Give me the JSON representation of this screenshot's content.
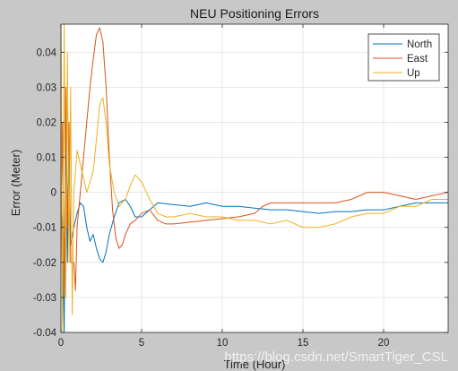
{
  "chart_data": {
    "type": "line",
    "title": "NEU Positioning Errors",
    "xlabel": "Time (Hour)",
    "ylabel": "Error (Meter)",
    "xlim": [
      0,
      24
    ],
    "ylim": [
      -0.04,
      0.048
    ],
    "xticks": [
      0,
      5,
      10,
      15,
      20
    ],
    "yticks": [
      -0.04,
      -0.03,
      -0.02,
      -0.01,
      0,
      0.01,
      0.02,
      0.03,
      0.04
    ],
    "ytick_labels": [
      "-0.04",
      "-0.03",
      "-0.02",
      "-0.01",
      "0",
      "0.01",
      "0.02",
      "0.03",
      "0.04"
    ],
    "grid": true,
    "legend_position": "top-right",
    "series": [
      {
        "name": "North",
        "color": "#0072bd",
        "points": [
          [
            0,
            0
          ],
          [
            0.1,
            -0.01
          ],
          [
            0.2,
            -0.04
          ],
          [
            0.3,
            0.02
          ],
          [
            0.4,
            -0.02
          ],
          [
            0.5,
            0.01
          ],
          [
            0.6,
            -0.015
          ],
          [
            0.8,
            -0.01
          ],
          [
            1.0,
            -0.006
          ],
          [
            1.2,
            -0.003
          ],
          [
            1.4,
            -0.004
          ],
          [
            1.6,
            -0.01
          ],
          [
            1.8,
            -0.014
          ],
          [
            2.0,
            -0.012
          ],
          [
            2.2,
            -0.016
          ],
          [
            2.4,
            -0.019
          ],
          [
            2.6,
            -0.02
          ],
          [
            2.8,
            -0.017
          ],
          [
            3.0,
            -0.012
          ],
          [
            3.3,
            -0.007
          ],
          [
            3.6,
            -0.003
          ],
          [
            4.0,
            -0.002
          ],
          [
            4.3,
            -0.004
          ],
          [
            4.6,
            -0.007
          ],
          [
            5.0,
            -0.007
          ],
          [
            5.5,
            -0.005
          ],
          [
            6.0,
            -0.003
          ],
          [
            7,
            -0.0035
          ],
          [
            8,
            -0.004
          ],
          [
            9,
            -0.003
          ],
          [
            10,
            -0.004
          ],
          [
            11,
            -0.004
          ],
          [
            12,
            -0.0045
          ],
          [
            13,
            -0.005
          ],
          [
            14,
            -0.005
          ],
          [
            15,
            -0.0055
          ],
          [
            16,
            -0.006
          ],
          [
            17,
            -0.0055
          ],
          [
            18,
            -0.0055
          ],
          [
            19,
            -0.005
          ],
          [
            20,
            -0.005
          ],
          [
            21,
            -0.004
          ],
          [
            22,
            -0.003
          ],
          [
            23,
            -0.003
          ],
          [
            24,
            -0.003
          ]
        ]
      },
      {
        "name": "East",
        "color": "#d95319",
        "points": [
          [
            0,
            -0.02
          ],
          [
            0.1,
            0.02
          ],
          [
            0.2,
            -0.03
          ],
          [
            0.3,
            0.03
          ],
          [
            0.4,
            -0.01
          ],
          [
            0.5,
            0.02
          ],
          [
            0.6,
            -0.02
          ],
          [
            0.8,
            -0.02
          ],
          [
            0.9,
            -0.028
          ],
          [
            1.0,
            -0.01
          ],
          [
            1.2,
            0.0
          ],
          [
            1.4,
            0.01
          ],
          [
            1.6,
            0.02
          ],
          [
            1.8,
            0.03
          ],
          [
            2.0,
            0.038
          ],
          [
            2.2,
            0.045
          ],
          [
            2.4,
            0.047
          ],
          [
            2.6,
            0.043
          ],
          [
            2.8,
            0.03
          ],
          [
            3.0,
            0.01
          ],
          [
            3.2,
            -0.005
          ],
          [
            3.4,
            -0.013
          ],
          [
            3.6,
            -0.016
          ],
          [
            3.8,
            -0.015
          ],
          [
            4.0,
            -0.012
          ],
          [
            4.3,
            -0.009
          ],
          [
            4.6,
            -0.008
          ],
          [
            5.0,
            -0.006
          ],
          [
            5.5,
            -0.005
          ],
          [
            6.0,
            -0.008
          ],
          [
            6.5,
            -0.009
          ],
          [
            7,
            -0.009
          ],
          [
            8,
            -0.0085
          ],
          [
            9,
            -0.008
          ],
          [
            10,
            -0.0075
          ],
          [
            11,
            -0.007
          ],
          [
            12,
            -0.006
          ],
          [
            12.5,
            -0.004
          ],
          [
            13,
            -0.003
          ],
          [
            14,
            -0.003
          ],
          [
            15,
            -0.003
          ],
          [
            16,
            -0.003
          ],
          [
            17,
            -0.003
          ],
          [
            18,
            -0.002
          ],
          [
            19,
            0.0
          ],
          [
            20,
            0.0
          ],
          [
            21,
            -0.001
          ],
          [
            22,
            -0.002
          ],
          [
            23,
            -0.001
          ],
          [
            24,
            0.0
          ]
        ]
      },
      {
        "name": "Up",
        "color": "#edb120",
        "points": [
          [
            0,
            0.048
          ],
          [
            0.1,
            -0.04
          ],
          [
            0.2,
            0.048
          ],
          [
            0.3,
            -0.03
          ],
          [
            0.4,
            0.04
          ],
          [
            0.5,
            -0.02
          ],
          [
            0.6,
            0.03
          ],
          [
            0.7,
            -0.035
          ],
          [
            0.8,
            0.0
          ],
          [
            1.0,
            0.012
          ],
          [
            1.2,
            0.008
          ],
          [
            1.4,
            0.004
          ],
          [
            1.6,
            0.0
          ],
          [
            1.8,
            0.003
          ],
          [
            2.0,
            0.006
          ],
          [
            2.2,
            0.015
          ],
          [
            2.4,
            0.025
          ],
          [
            2.6,
            0.027
          ],
          [
            2.8,
            0.02
          ],
          [
            3.0,
            0.008
          ],
          [
            3.3,
            0.0
          ],
          [
            3.6,
            -0.004
          ],
          [
            4.0,
            -0.002
          ],
          [
            4.3,
            0.002
          ],
          [
            4.6,
            0.005
          ],
          [
            5.0,
            0.003
          ],
          [
            5.5,
            -0.002
          ],
          [
            6.0,
            -0.006
          ],
          [
            6.5,
            -0.007
          ],
          [
            7,
            -0.007
          ],
          [
            8,
            -0.006
          ],
          [
            9,
            -0.007
          ],
          [
            10,
            -0.007
          ],
          [
            11,
            -0.008
          ],
          [
            12,
            -0.008
          ],
          [
            13,
            -0.009
          ],
          [
            14,
            -0.008
          ],
          [
            15,
            -0.01
          ],
          [
            16,
            -0.01
          ],
          [
            17,
            -0.009
          ],
          [
            18,
            -0.007
          ],
          [
            19,
            -0.006
          ],
          [
            20,
            -0.006
          ],
          [
            21,
            -0.004
          ],
          [
            22,
            -0.004
          ],
          [
            23,
            -0.002
          ],
          [
            24,
            -0.002
          ]
        ]
      }
    ]
  },
  "watermark": "https://blog.csdn.net/SmartTiger_CSL"
}
